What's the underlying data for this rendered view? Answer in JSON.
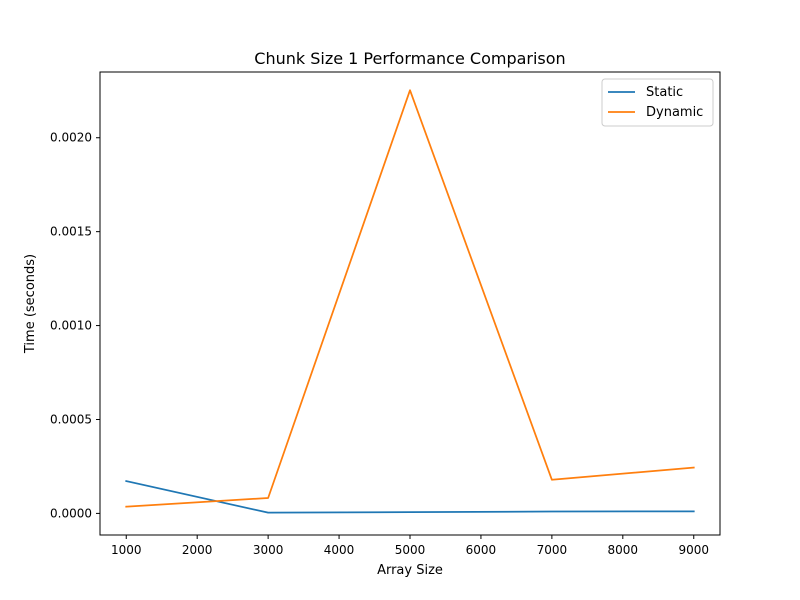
{
  "chart_data": {
    "type": "line",
    "title": "Chunk Size 1 Performance Comparison",
    "xlabel": "Array Size",
    "ylabel": "Time (seconds)",
    "x": [
      1000,
      3000,
      5000,
      7000,
      9000
    ],
    "xlim": [
      630,
      9370
    ],
    "ylim": [
      -0.000115,
      0.00235
    ],
    "xticks": [
      1000,
      2000,
      3000,
      4000,
      5000,
      6000,
      7000,
      8000,
      9000
    ],
    "xtick_labels": [
      "1000",
      "2000",
      "3000",
      "4000",
      "5000",
      "6000",
      "7000",
      "8000",
      "9000"
    ],
    "yticks": [
      0.0,
      0.0005,
      0.001,
      0.0015,
      0.002
    ],
    "ytick_labels": [
      "0.0000",
      "0.0005",
      "0.0010",
      "0.0015",
      "0.0020"
    ],
    "grid": false,
    "legend_position": "upper right",
    "series": [
      {
        "name": "Static",
        "color": "#1f77b4",
        "values": [
          0.000172,
          4e-06,
          7e-06,
          1e-05,
          1.1e-05
        ]
      },
      {
        "name": "Dynamic",
        "color": "#ff7f0e",
        "values": [
          3.6e-05,
          8.2e-05,
          0.002253,
          0.000179,
          0.000244
        ]
      }
    ]
  }
}
